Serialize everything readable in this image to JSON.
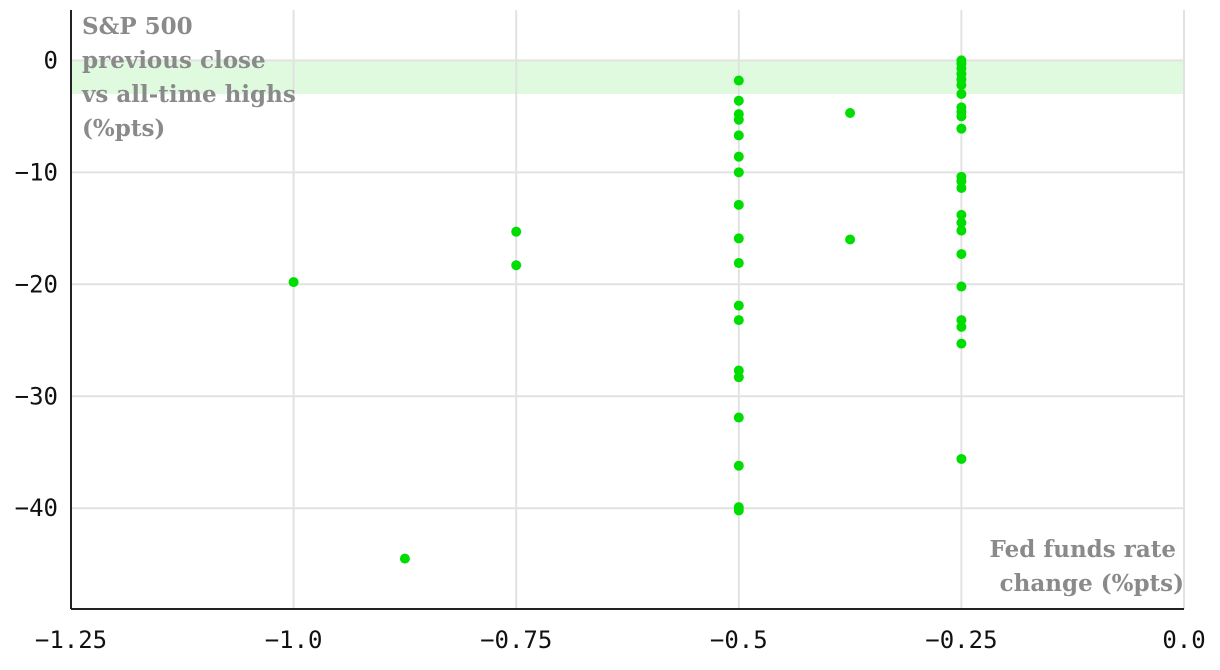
{
  "chart_data": {
    "type": "scatter",
    "ylabel_lines": [
      "S&P 500",
      "previous close",
      "vs all-time highs",
      "(%pts)"
    ],
    "xlabel_lines": [
      "Fed funds rate",
      "change (%pts)"
    ],
    "xlim": [
      -1.25,
      0.0
    ],
    "ylim": [
      -49,
      4.5
    ],
    "x_ticks": [
      -1.25,
      -1.0,
      -0.75,
      -0.5,
      -0.25,
      0.0
    ],
    "x_tick_labels": [
      "−1.25",
      "−1.0",
      "−0.75",
      "−0.5",
      "−0.25",
      "0.0"
    ],
    "y_ticks": [
      0,
      -10,
      -20,
      -30,
      -40
    ],
    "y_tick_labels": [
      "0",
      "−10",
      "−20",
      "−30",
      "−40"
    ],
    "grid": true,
    "highlight_band": {
      "y_from": -3,
      "y_to": 0,
      "color": "#e0fae0"
    },
    "point_color": "#00dd00",
    "series": [
      {
        "points": [
          [
            -1.0,
            -19.8
          ],
          [
            -0.875,
            -44.5
          ],
          [
            -0.75,
            -15.3
          ],
          [
            -0.75,
            -18.3
          ],
          [
            -0.5,
            -1.8
          ],
          [
            -0.5,
            -3.6
          ],
          [
            -0.5,
            -4.8
          ],
          [
            -0.5,
            -5.3
          ],
          [
            -0.5,
            -6.7
          ],
          [
            -0.5,
            -8.6
          ],
          [
            -0.5,
            -10.0
          ],
          [
            -0.5,
            -12.9
          ],
          [
            -0.5,
            -15.9
          ],
          [
            -0.5,
            -18.1
          ],
          [
            -0.5,
            -21.9
          ],
          [
            -0.5,
            -23.2
          ],
          [
            -0.5,
            -27.7
          ],
          [
            -0.5,
            -28.3
          ],
          [
            -0.5,
            -31.9
          ],
          [
            -0.5,
            -36.2
          ],
          [
            -0.5,
            -39.9
          ],
          [
            -0.5,
            -40.2
          ],
          [
            -0.375,
            -4.7
          ],
          [
            -0.375,
            -16.0
          ],
          [
            -0.25,
            0.0
          ],
          [
            -0.25,
            -0.3
          ],
          [
            -0.25,
            -0.7
          ],
          [
            -0.25,
            -1.2
          ],
          [
            -0.25,
            -1.7
          ],
          [
            -0.25,
            -2.2
          ],
          [
            -0.25,
            -3.0
          ],
          [
            -0.25,
            -4.2
          ],
          [
            -0.25,
            -4.6
          ],
          [
            -0.25,
            -5.0
          ],
          [
            -0.25,
            -6.1
          ],
          [
            -0.25,
            -10.4
          ],
          [
            -0.25,
            -10.8
          ],
          [
            -0.25,
            -11.4
          ],
          [
            -0.25,
            -13.8
          ],
          [
            -0.25,
            -14.5
          ],
          [
            -0.25,
            -15.2
          ],
          [
            -0.25,
            -17.3
          ],
          [
            -0.25,
            -20.2
          ],
          [
            -0.25,
            -23.2
          ],
          [
            -0.25,
            -23.8
          ],
          [
            -0.25,
            -25.3
          ],
          [
            -0.25,
            -35.6
          ]
        ]
      }
    ]
  }
}
